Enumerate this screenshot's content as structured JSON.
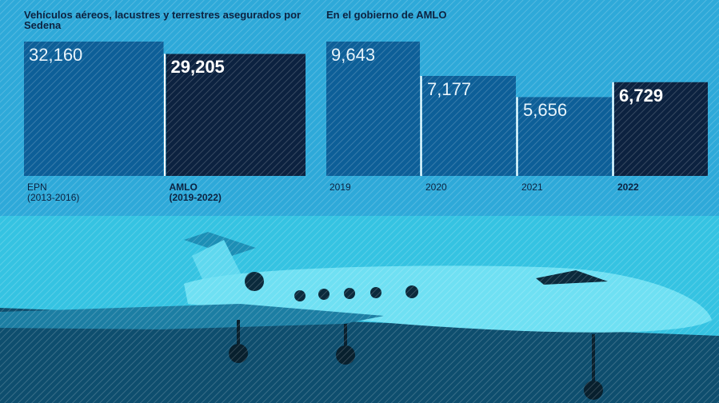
{
  "chart_data": [
    {
      "type": "bar",
      "title": "Vehículos aéreos, lacustres y terrestres asegurados por Sedena",
      "categories": [
        "EPN\n(2013-2016)",
        "AMLO\n(2019-2022)"
      ],
      "values": [
        32160,
        29205
      ],
      "value_labels": [
        "32,160",
        "29,205"
      ],
      "colors": [
        "#0d5f98",
        "#0c2240"
      ],
      "emphasis": [
        false,
        true
      ]
    },
    {
      "type": "bar",
      "title": "En el gobierno de AMLO",
      "categories": [
        "2019",
        "2020",
        "2021",
        "2022"
      ],
      "values": [
        9643,
        7177,
        5656,
        6729
      ],
      "value_labels": [
        "9,643",
        "7,177",
        "5,656",
        "6,729"
      ],
      "colors": [
        "#0d5f98",
        "#0d5f98",
        "#0d5f98",
        "#0c2240"
      ],
      "emphasis": [
        false,
        false,
        false,
        true
      ]
    }
  ]
}
